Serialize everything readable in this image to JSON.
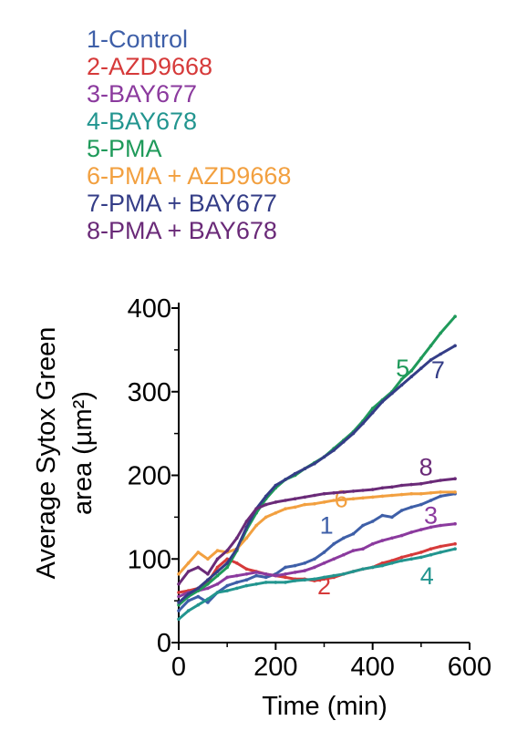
{
  "chart_data": {
    "type": "line",
    "title": "",
    "xlabel": "Time (min)",
    "ylabel_line1": "Average Sytox Green",
    "ylabel_line2": "area (µm²)",
    "xlim": [
      0,
      600
    ],
    "ylim": [
      0,
      400
    ],
    "x_ticks": [
      0,
      200,
      400,
      600
    ],
    "y_ticks": [
      0,
      100,
      200,
      300,
      400
    ],
    "legend_position": "top-left, above plot",
    "grid": false,
    "series": [
      {
        "name": "1-Control",
        "label": "1",
        "color": "#3e5fa8",
        "label_at": [
          305,
          130
        ],
        "x": [
          0,
          20,
          40,
          60,
          80,
          100,
          120,
          140,
          160,
          180,
          200,
          220,
          240,
          260,
          280,
          300,
          320,
          340,
          360,
          380,
          400,
          420,
          440,
          460,
          480,
          500,
          520,
          540,
          570
        ],
        "y": [
          38,
          50,
          55,
          48,
          60,
          68,
          72,
          75,
          80,
          78,
          82,
          90,
          92,
          95,
          100,
          108,
          118,
          125,
          130,
          140,
          145,
          152,
          150,
          158,
          162,
          165,
          170,
          175,
          178
        ]
      },
      {
        "name": "2-AZD9668",
        "label": "2",
        "color": "#d63a3a",
        "label_at": [
          300,
          58
        ],
        "x": [
          0,
          20,
          40,
          60,
          80,
          100,
          120,
          140,
          160,
          180,
          200,
          220,
          240,
          260,
          280,
          300,
          320,
          340,
          360,
          380,
          400,
          420,
          440,
          460,
          480,
          500,
          520,
          540,
          570
        ],
        "y": [
          60,
          62,
          65,
          72,
          90,
          100,
          95,
          88,
          85,
          82,
          80,
          78,
          76,
          76,
          74,
          76,
          78,
          82,
          85,
          88,
          90,
          95,
          98,
          102,
          105,
          108,
          112,
          115,
          118
        ]
      },
      {
        "name": "3-BAY677",
        "label": "3",
        "color": "#8b3a9e",
        "label_at": [
          520,
          142
        ],
        "x": [
          0,
          20,
          40,
          60,
          80,
          100,
          120,
          140,
          160,
          180,
          200,
          220,
          240,
          260,
          280,
          300,
          320,
          340,
          360,
          380,
          400,
          420,
          440,
          460,
          480,
          500,
          520,
          540,
          570
        ],
        "y": [
          55,
          60,
          62,
          65,
          70,
          78,
          80,
          82,
          84,
          82,
          80,
          82,
          84,
          86,
          90,
          95,
          100,
          105,
          110,
          112,
          118,
          122,
          125,
          128,
          132,
          135,
          138,
          140,
          142
        ]
      },
      {
        "name": "4-BAY678",
        "label": "4",
        "color": "#22958f",
        "label_at": [
          512,
          70
        ],
        "x": [
          0,
          20,
          40,
          60,
          80,
          100,
          120,
          140,
          160,
          180,
          200,
          220,
          240,
          260,
          280,
          300,
          320,
          340,
          360,
          380,
          400,
          420,
          440,
          460,
          480,
          500,
          520,
          540,
          570
        ],
        "y": [
          28,
          38,
          45,
          52,
          60,
          62,
          65,
          68,
          70,
          72,
          72,
          72,
          74,
          75,
          76,
          78,
          80,
          82,
          85,
          88,
          90,
          92,
          95,
          98,
          100,
          102,
          105,
          108,
          112
        ]
      },
      {
        "name": "5-PMA",
        "label": "5",
        "color": "#1f9a5a",
        "label_at": [
          462,
          318
        ],
        "x": [
          0,
          20,
          40,
          60,
          80,
          100,
          120,
          140,
          160,
          180,
          200,
          220,
          240,
          260,
          280,
          300,
          320,
          340,
          360,
          380,
          400,
          420,
          440,
          460,
          480,
          500,
          520,
          540,
          570
        ],
        "y": [
          45,
          55,
          62,
          70,
          80,
          90,
          110,
          135,
          155,
          172,
          185,
          195,
          200,
          208,
          215,
          222,
          232,
          242,
          252,
          265,
          280,
          290,
          300,
          315,
          325,
          340,
          355,
          370,
          390
        ]
      },
      {
        "name": "6-PMA + AZD9668",
        "label": "6",
        "color": "#f2a040",
        "label_at": [
          335,
          162
        ],
        "x": [
          0,
          20,
          40,
          60,
          80,
          100,
          120,
          140,
          160,
          180,
          200,
          220,
          240,
          260,
          280,
          300,
          320,
          340,
          360,
          380,
          400,
          420,
          440,
          460,
          480,
          500,
          520,
          540,
          570
        ],
        "y": [
          82,
          95,
          108,
          100,
          110,
          108,
          112,
          125,
          140,
          150,
          155,
          160,
          162,
          165,
          166,
          168,
          170,
          171,
          172,
          173,
          174,
          175,
          176,
          177,
          178,
          178,
          179,
          180,
          180
        ]
      },
      {
        "name": "7-PMA + BAY677",
        "label": "7",
        "color": "#343d87",
        "label_at": [
          535,
          316
        ],
        "x": [
          0,
          20,
          40,
          60,
          80,
          100,
          120,
          140,
          160,
          180,
          200,
          220,
          240,
          260,
          280,
          300,
          320,
          340,
          360,
          380,
          400,
          420,
          440,
          460,
          480,
          500,
          520,
          540,
          570
        ],
        "y": [
          48,
          58,
          65,
          75,
          85,
          95,
          112,
          138,
          160,
          175,
          188,
          195,
          202,
          208,
          214,
          222,
          230,
          240,
          250,
          262,
          275,
          288,
          298,
          308,
          318,
          328,
          338,
          345,
          355
        ]
      },
      {
        "name": "8-PMA + BAY678",
        "label": "8",
        "color": "#6a2a78",
        "label_at": [
          510,
          200
        ],
        "x": [
          0,
          20,
          40,
          60,
          80,
          100,
          120,
          140,
          160,
          180,
          200,
          220,
          240,
          260,
          280,
          300,
          320,
          340,
          360,
          380,
          400,
          420,
          440,
          460,
          480,
          500,
          520,
          540,
          570
        ],
        "y": [
          70,
          85,
          90,
          82,
          100,
          110,
          125,
          145,
          160,
          165,
          168,
          170,
          172,
          174,
          176,
          178,
          179,
          180,
          181,
          182,
          183,
          185,
          186,
          188,
          189,
          190,
          192,
          194,
          196
        ]
      }
    ]
  }
}
